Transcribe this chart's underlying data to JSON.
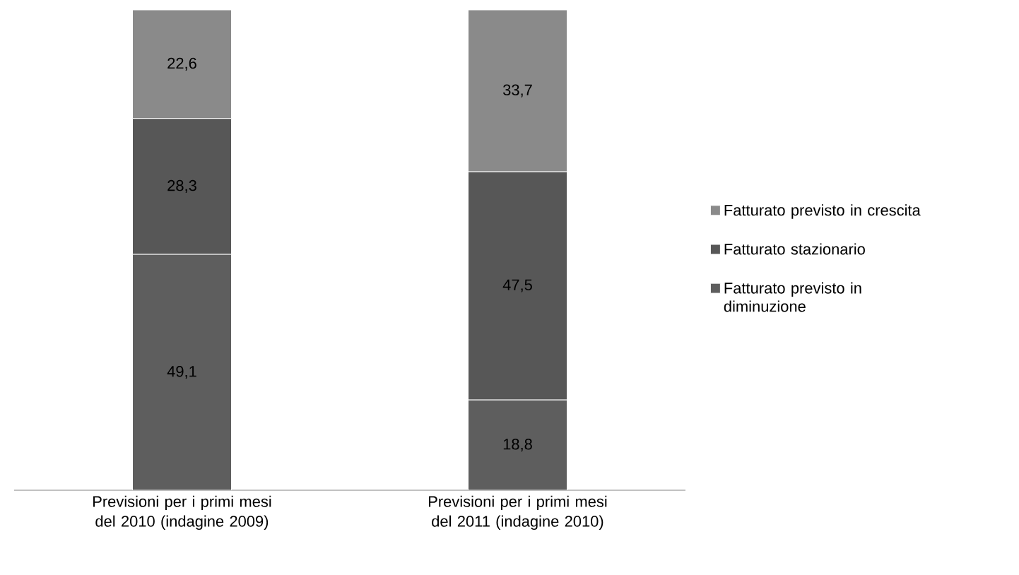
{
  "chart_data": {
    "type": "bar",
    "stacked": true,
    "legend": "right",
    "categories": [
      "Previsioni per i primi mesi del 2010 (indagine 2009)",
      "Previsioni per i primi mesi del 2011 (indagine 2010)"
    ],
    "series": [
      {
        "name": "Fatturato previsto in diminuzione",
        "color": "#5e5e5e",
        "values": [
          49.1,
          18.8
        ],
        "value_labels": [
          "49,1",
          "18,8"
        ]
      },
      {
        "name": "Fatturato stazionario",
        "color": "#575757",
        "values": [
          28.3,
          47.5
        ],
        "value_labels": [
          "28,3",
          "47,5"
        ]
      },
      {
        "name": "Fatturato previsto in crescita",
        "color": "#8a8a8a",
        "values": [
          22.6,
          33.7
        ],
        "value_labels": [
          "22,6",
          "33,7"
        ]
      }
    ]
  }
}
